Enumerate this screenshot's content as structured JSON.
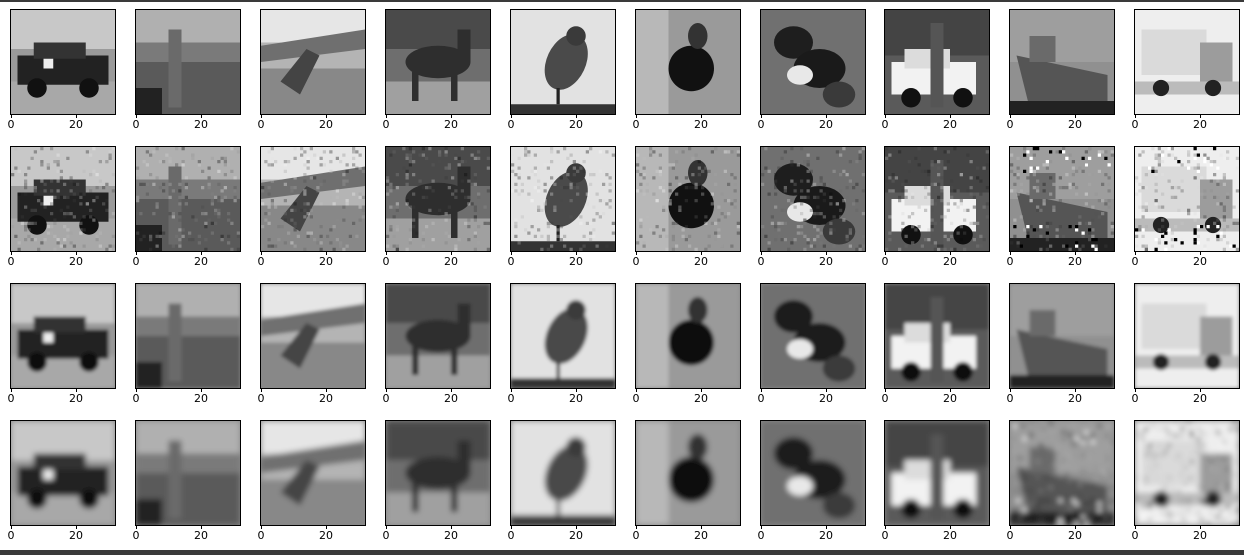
{
  "figure": {
    "rows": [
      {
        "images": [
          "car",
          "ostrich",
          "airplane",
          "horse",
          "bird",
          "deer",
          "dog",
          "car-with-person",
          "ship",
          "truck"
        ]
      },
      {
        "images": [
          "car",
          "ostrich",
          "airplane",
          "horse",
          "bird",
          "deer",
          "dog",
          "car-with-person",
          "ship",
          "truck"
        ]
      },
      {
        "images": [
          "car",
          "ostrich",
          "airplane",
          "horse",
          "bird",
          "deer",
          "dog",
          "car-with-person",
          "ship",
          "truck"
        ]
      },
      {
        "images": [
          "car",
          "ostrich",
          "airplane",
          "horse",
          "bird",
          "deer",
          "dog",
          "car-with-person",
          "ship",
          "truck"
        ]
      }
    ],
    "x_ticks": [
      "0",
      "20"
    ]
  }
}
